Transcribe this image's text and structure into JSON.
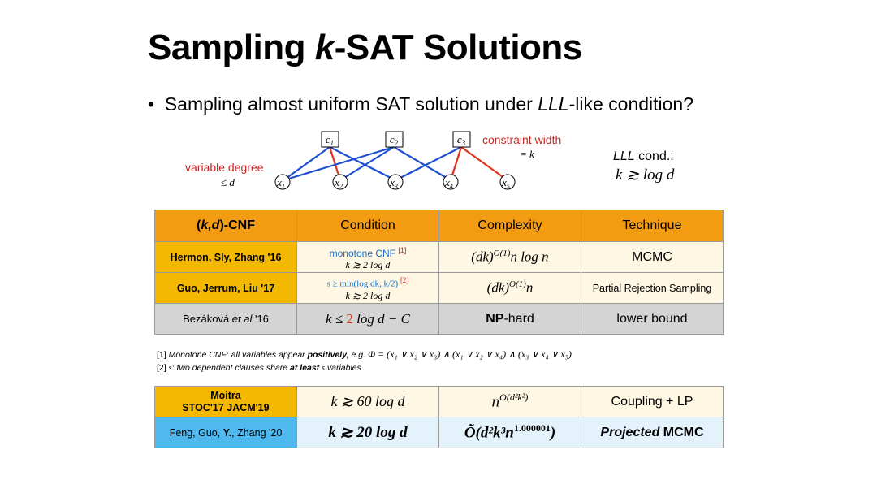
{
  "slide": {
    "title_pre": "Sampling ",
    "title_k": "k",
    "title_post": "-SAT Solutions",
    "bullet_mark": "•",
    "bullet_pre": "Sampling almost uniform SAT solution under ",
    "bullet_lll": "LLL",
    "bullet_post": "-like condition?"
  },
  "graph": {
    "clauses": [
      "c1",
      "c2",
      "c3"
    ],
    "variables": [
      "x1",
      "x2",
      "x3",
      "x4",
      "x5"
    ],
    "variable_degree_label": "variable degree",
    "variable_degree_value": "≤ d",
    "constraint_width_label": "constraint width",
    "constraint_width_value": "= k",
    "lll_label_it": "LLL",
    "lll_label_rest": " cond.:",
    "lll_formula": "k ≳ log d",
    "colors": {
      "blue_edge": "#1f4fd1",
      "red_edge": "#e0341f",
      "red_text": "#c62828"
    }
  },
  "table1": {
    "headers": [
      "(k,d)-CNF",
      "Condition",
      "Complexity",
      "Technique"
    ],
    "header_color": "#f39c12",
    "rows": [
      {
        "name": "Hermon, Sly, Zhang '16",
        "cond_line1": "monotone CNF",
        "cond_note": "[1]",
        "cond_line2": "k ≳ 2 log d",
        "complexity": "(dk)^{O(1)} n log n",
        "technique": "MCMC"
      },
      {
        "name": "Guo, Jerrum, Liu '17",
        "cond_line1": "s ≥ min(log dk, k/2)",
        "cond_note": "[2]",
        "cond_line2": "k ≳ 2 log d",
        "complexity": "(dk)^{O(1)} n",
        "technique": "Partial Rejection Sampling"
      },
      {
        "name_pre": "Bezáková ",
        "name_it": "et al",
        "name_post": " '16",
        "cond_pre": "k ≤ ",
        "cond_red": "2",
        "cond_post": " log d − C",
        "complexity_bold": "NP",
        "complexity_rest": "-hard",
        "technique": "lower bound"
      }
    ]
  },
  "notes": {
    "note1_pre": "[1] ",
    "note1_it": "Monotone CNF:  all variables appear ",
    "note1_bold": "positively,",
    "note1_post": " e.g. ",
    "note1_formula": "Φ = (x₁ ∨ x₂ ∨ x₃) ∧ (x₁ ∨ x₂ ∨ x₄) ∧ (x₃ ∨ x₄ ∨ x₅)",
    "note2_pre": "[2] ",
    "note2_s": "s",
    "note2_it": ":  two dependent clauses share ",
    "note2_bold": "at least",
    "note2_s2": " s",
    "note2_post": " variables."
  },
  "table2": {
    "rows": [
      {
        "name_line1": "Moitra",
        "name_line2": "STOC'17 JACM'19",
        "condition": "k ≳ 60 log d",
        "complexity_base": "n",
        "complexity_exp": "O(d²k²)",
        "technique": "Coupling + LP"
      },
      {
        "name_pre": "Feng, Guo, ",
        "name_bold": "Y.",
        "name_post": ", Zhang '20",
        "condition": "k ≳ 20 log d",
        "complexity": "Õ(d²k³n",
        "complexity_exp": "1.000001",
        "complexity_close": ")",
        "technique_it": "Projected",
        "technique_rest": " MCMC"
      }
    ]
  }
}
